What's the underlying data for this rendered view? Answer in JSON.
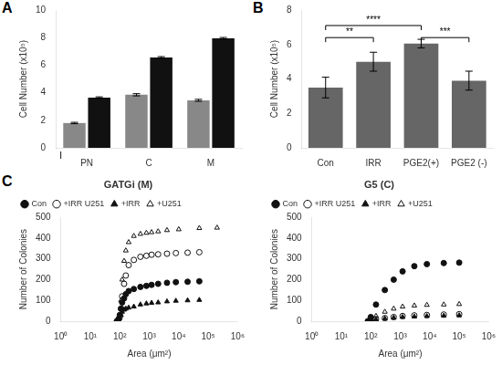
{
  "chart_data": [
    {
      "type": "bar",
      "categories": [
        "PN",
        "C",
        "M"
      ],
      "series": [
        {
          "color": "#888888",
          "values": [
            1.8,
            3.85,
            3.45
          ],
          "errors": [
            0.05,
            0.08,
            0.07
          ]
        },
        {
          "color": "#111111",
          "values": [
            3.65,
            6.55,
            7.95
          ],
          "errors": [
            0.05,
            0.07,
            0.06
          ]
        }
      ],
      "ylabel": "Cell Number (x10⁵)",
      "ylim": [
        0,
        10
      ],
      "yticks": [
        0,
        2,
        4,
        6,
        8,
        10
      ],
      "grid": false,
      "annotations": [
        "A",
        {
          "text": "I",
          "x": "PN"
        }
      ]
    },
    {
      "type": "bar",
      "categories": [
        "Con",
        "IRR",
        "PGE2(+)",
        "PGE2 (-)"
      ],
      "values": [
        3.5,
        5.0,
        6.05,
        3.9
      ],
      "errors": [
        0.6,
        0.55,
        0.25,
        0.55
      ],
      "color": "#666666",
      "ylabel": "Cell Number (x10⁵)",
      "ylim": [
        0,
        8
      ],
      "yticks": [
        0,
        2,
        4,
        6,
        8
      ],
      "grid": false,
      "annotations": [
        "B",
        {
          "x1": "Con",
          "x2": "IRR",
          "y": 6.4,
          "text": "**"
        },
        {
          "x1": "Con",
          "x2": "PGE2(+)",
          "y": 7.1,
          "text": "****"
        },
        {
          "x1": "PGE2(+)",
          "x2": "PGE2 (-)",
          "y": 6.4,
          "text": "***"
        }
      ]
    },
    {
      "type": "scatter",
      "title": "GATGi (M)",
      "xlabel": "Area (μm²)",
      "ylabel": "Number of Colonies",
      "log": "x",
      "xlim": [
        1,
        1000000
      ],
      "xticks": [
        {
          "value": 1,
          "label": "10⁰"
        },
        {
          "value": 10,
          "label": "10¹"
        },
        {
          "value": 100,
          "label": "10²"
        },
        {
          "value": 1000,
          "label": "10³"
        },
        {
          "value": 10000,
          "label": "10⁴"
        },
        {
          "value": 100000,
          "label": "10⁵"
        },
        {
          "value": 1000000,
          "label": "10⁶"
        }
      ],
      "ylim": [
        0,
        500
      ],
      "yticks": [
        0,
        100,
        200,
        300,
        400,
        500
      ],
      "grid": false,
      "legend": "upper left",
      "annotations": [
        "C"
      ],
      "series": [
        {
          "name": "Con",
          "marker": "circle",
          "color": "#111111",
          "x": [
            80,
            90,
            100,
            110,
            120,
            140,
            160,
            200,
            300,
            500,
            800,
            1200,
            2000,
            4000,
            8000,
            20000,
            50000
          ],
          "values": [
            0,
            10,
            30,
            60,
            90,
            110,
            130,
            145,
            155,
            165,
            170,
            175,
            180,
            185,
            188,
            190,
            192
          ]
        },
        {
          "name": "+IRR U251",
          "marker": "circle-open",
          "color": "#111111",
          "x": [
            80,
            90,
            100,
            110,
            120,
            140,
            160,
            200,
            300,
            500,
            800,
            1200,
            2000,
            4000,
            8000,
            20000,
            50000
          ],
          "values": [
            0,
            5,
            20,
            60,
            120,
            180,
            220,
            270,
            295,
            310,
            315,
            320,
            322,
            325,
            328,
            330,
            332
          ]
        },
        {
          "name": "+IRR",
          "marker": "triangle",
          "color": "#111111",
          "x": [
            80,
            90,
            100,
            110,
            120,
            140,
            160,
            200,
            300,
            500,
            800,
            1200,
            2000,
            4000,
            8000,
            20000,
            50000
          ],
          "values": [
            0,
            5,
            15,
            30,
            45,
            55,
            60,
            65,
            70,
            80,
            85,
            88,
            90,
            95,
            98,
            100,
            102
          ]
        },
        {
          "name": "+U251",
          "marker": "triangle-open",
          "color": "#111111",
          "x": [
            80,
            90,
            100,
            110,
            120,
            140,
            160,
            200,
            300,
            500,
            800,
            1200,
            2000,
            4000,
            10000,
            50000,
            200000
          ],
          "values": [
            0,
            5,
            30,
            100,
            200,
            290,
            340,
            380,
            410,
            420,
            425,
            428,
            432,
            438,
            442,
            448,
            450
          ]
        }
      ]
    },
    {
      "type": "scatter",
      "title": "G5 (C)",
      "xlabel": "Area (μm²)",
      "ylabel": "Number of Colonies",
      "log": "x",
      "xlim": [
        1,
        1000000
      ],
      "xticks": [
        {
          "value": 1,
          "label": "10⁰"
        },
        {
          "value": 10,
          "label": "10¹"
        },
        {
          "value": 100,
          "label": "10²"
        },
        {
          "value": 1000,
          "label": "10³"
        },
        {
          "value": 10000,
          "label": "10⁴"
        },
        {
          "value": 100000,
          "label": "10⁵"
        },
        {
          "value": 1000000,
          "label": "10⁶"
        }
      ],
      "ylim": [
        0,
        500
      ],
      "yticks": [
        0,
        100,
        200,
        300,
        400,
        500
      ],
      "grid": false,
      "legend": "upper left",
      "series": [
        {
          "name": "Con",
          "marker": "circle",
          "color": "#111111",
          "x": [
            80,
            100,
            150,
            300,
            600,
            1200,
            3000,
            8000,
            30000,
            100000
          ],
          "values": [
            0,
            20,
            80,
            150,
            200,
            240,
            265,
            275,
            280,
            282
          ]
        },
        {
          "name": "+IRR U251",
          "marker": "circle-open",
          "color": "#111111",
          "x": [
            80,
            100,
            150,
            300,
            600,
            1200,
            3000,
            8000,
            30000,
            100000
          ],
          "values": [
            0,
            5,
            10,
            15,
            20,
            25,
            28,
            30,
            32,
            34
          ]
        },
        {
          "name": "+IRR",
          "marker": "triangle",
          "color": "#111111",
          "x": [
            80,
            100,
            150,
            300,
            600,
            1200,
            3000,
            8000,
            30000,
            100000
          ],
          "values": [
            0,
            5,
            8,
            12,
            16,
            20,
            22,
            24,
            26,
            28
          ]
        },
        {
          "name": "+U251",
          "marker": "triangle-open",
          "color": "#111111",
          "x": [
            80,
            100,
            150,
            300,
            600,
            1200,
            3000,
            8000,
            30000,
            100000
          ],
          "values": [
            0,
            10,
            25,
            45,
            60,
            70,
            75,
            78,
            80,
            82
          ]
        }
      ]
    }
  ]
}
